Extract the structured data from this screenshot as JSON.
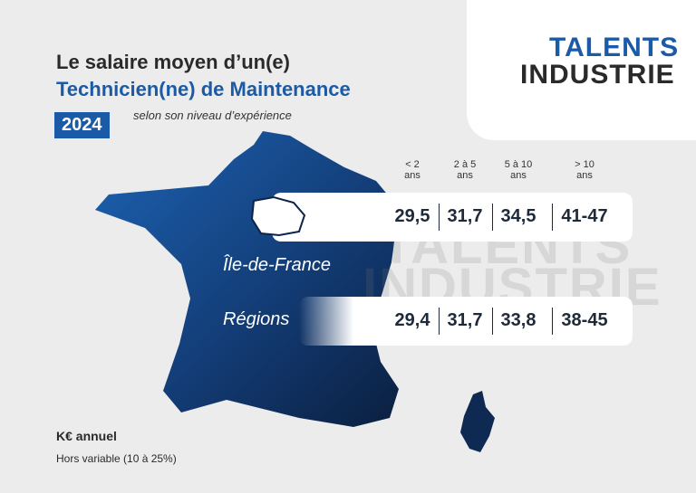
{
  "header": {
    "title_line1": "Le salaire moyen d’un(e)",
    "title_line2": "Technicien(ne) de Maintenance",
    "year": "2024",
    "subtitle": "selon son niveau d’expérience"
  },
  "logo": {
    "line1": "TALENTS",
    "line2": "INDUSTRIE"
  },
  "table": {
    "columns": [
      "< 2 ans",
      "2 à 5 ans",
      "5 à 10 ans",
      "> 10 ans"
    ],
    "rows": [
      {
        "label": "Île-de-France",
        "values": [
          "29,5",
          "31,7",
          "34,5",
          "41-47"
        ]
      },
      {
        "label": "Régions",
        "values": [
          "29,4",
          "31,7",
          "33,8",
          "38-45"
        ]
      }
    ]
  },
  "footer": {
    "unit": "K€ annuel",
    "note": "Hors variable (10 à 25%)"
  }
}
